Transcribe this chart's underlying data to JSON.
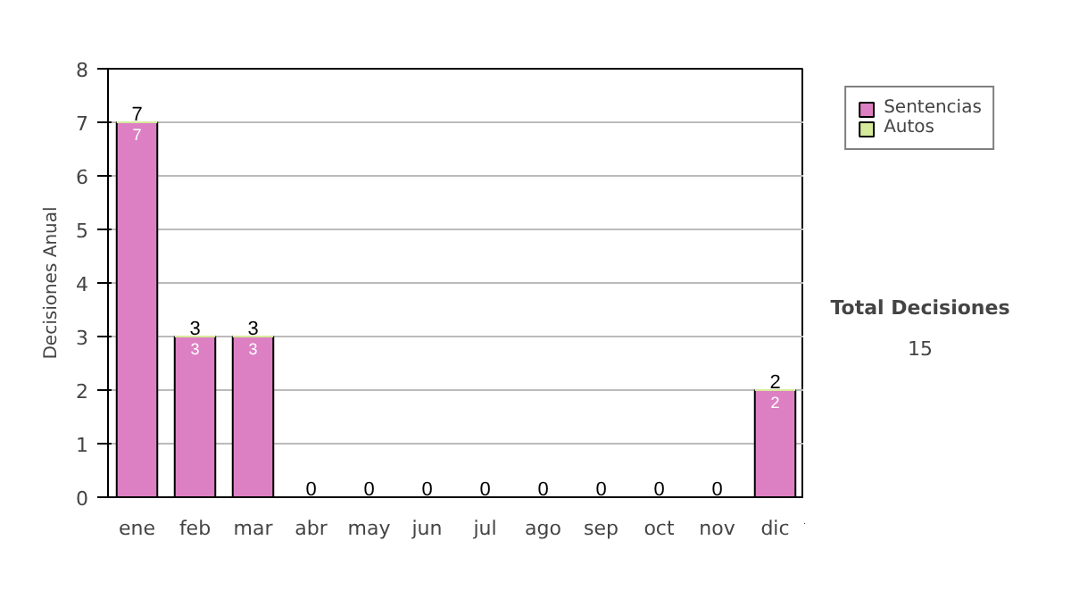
{
  "chart_data": {
    "type": "bar",
    "stacked": true,
    "ylabel": "Decisiones Anual",
    "categories": [
      "ene",
      "feb",
      "mar",
      "abr",
      "may",
      "jun",
      "jul",
      "ago",
      "sep",
      "oct",
      "nov",
      "dic"
    ],
    "series": [
      {
        "name": "Sentencias",
        "color": "#dd7fc3",
        "values": [
          7,
          3,
          3,
          0,
          0,
          0,
          0,
          0,
          0,
          0,
          0,
          2
        ],
        "value_labels": [
          "7",
          "3",
          "3",
          null,
          null,
          null,
          null,
          null,
          null,
          null,
          null,
          "2"
        ]
      },
      {
        "name": "Autos",
        "color": "#d6ea9c",
        "values": [
          0,
          0,
          0,
          0,
          0,
          0,
          0,
          0,
          0,
          0,
          0,
          0
        ]
      }
    ],
    "totals": [
      "7",
      "3",
      "3",
      "0",
      "0",
      "0",
      "0",
      "0",
      "0",
      "0",
      "0",
      "2"
    ],
    "ylim": [
      0,
      8
    ],
    "yticks": [
      0,
      1,
      2,
      3,
      4,
      5,
      6,
      7,
      8
    ],
    "grid": "y",
    "legend": "right",
    "annotations": [
      "Total Decisiones",
      "15"
    ]
  }
}
